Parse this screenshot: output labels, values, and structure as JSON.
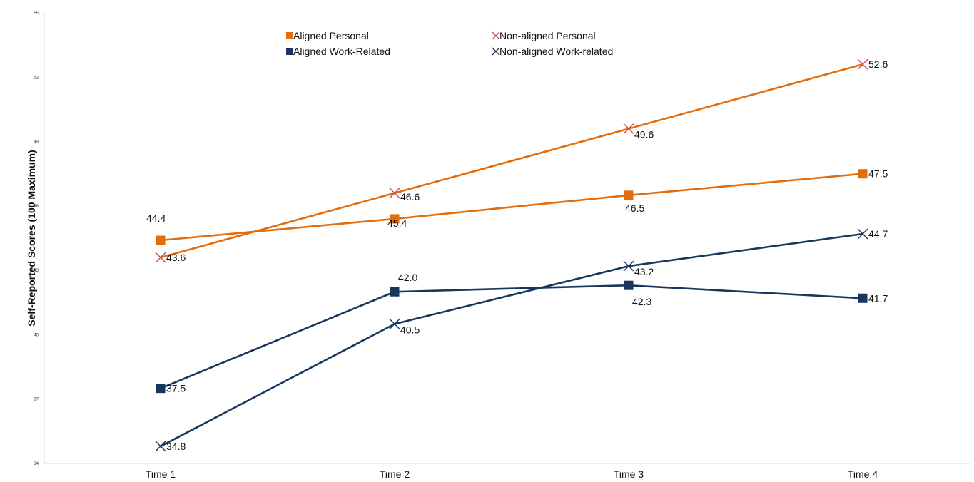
{
  "chart_data": {
    "type": "line",
    "title": "",
    "xlabel": "",
    "ylabel": "Self-Reported Scores (100 Maximum)",
    "categories": [
      "Time 1",
      "Time 2",
      "Time 3",
      "Time 4"
    ],
    "ylim": [
      34,
      55
    ],
    "yticks": [
      34,
      37,
      40,
      43,
      46,
      49,
      52,
      55
    ],
    "grid": false,
    "legend_position": "top-center",
    "series": [
      {
        "name": "Aligned Personal",
        "values": [
          44.4,
          45.4,
          46.5,
          47.5
        ],
        "labels": [
          "44.4",
          "45.4",
          "46.5",
          "47.5"
        ],
        "color": "#e46c0a",
        "marker": "square"
      },
      {
        "name": "Non-aligned Personal",
        "values": [
          43.6,
          46.6,
          49.6,
          52.6
        ],
        "labels": [
          "43.6",
          "46.6",
          "49.6",
          "52.6"
        ],
        "color": "#e46c0a",
        "marker_color": "#c0504d",
        "marker": "x"
      },
      {
        "name": "Aligned Work-Related",
        "values": [
          37.5,
          42.0,
          42.3,
          41.7
        ],
        "labels": [
          "37.5",
          "42.0",
          "42.3",
          "41.7"
        ],
        "color": "#17375e",
        "marker": "square"
      },
      {
        "name": "Non-aligned Work-related",
        "values": [
          34.8,
          40.5,
          43.2,
          44.7
        ],
        "labels": [
          "34.8",
          "40.5",
          "43.2",
          "44.7"
        ],
        "color": "#17375e",
        "marker": "x"
      }
    ]
  }
}
